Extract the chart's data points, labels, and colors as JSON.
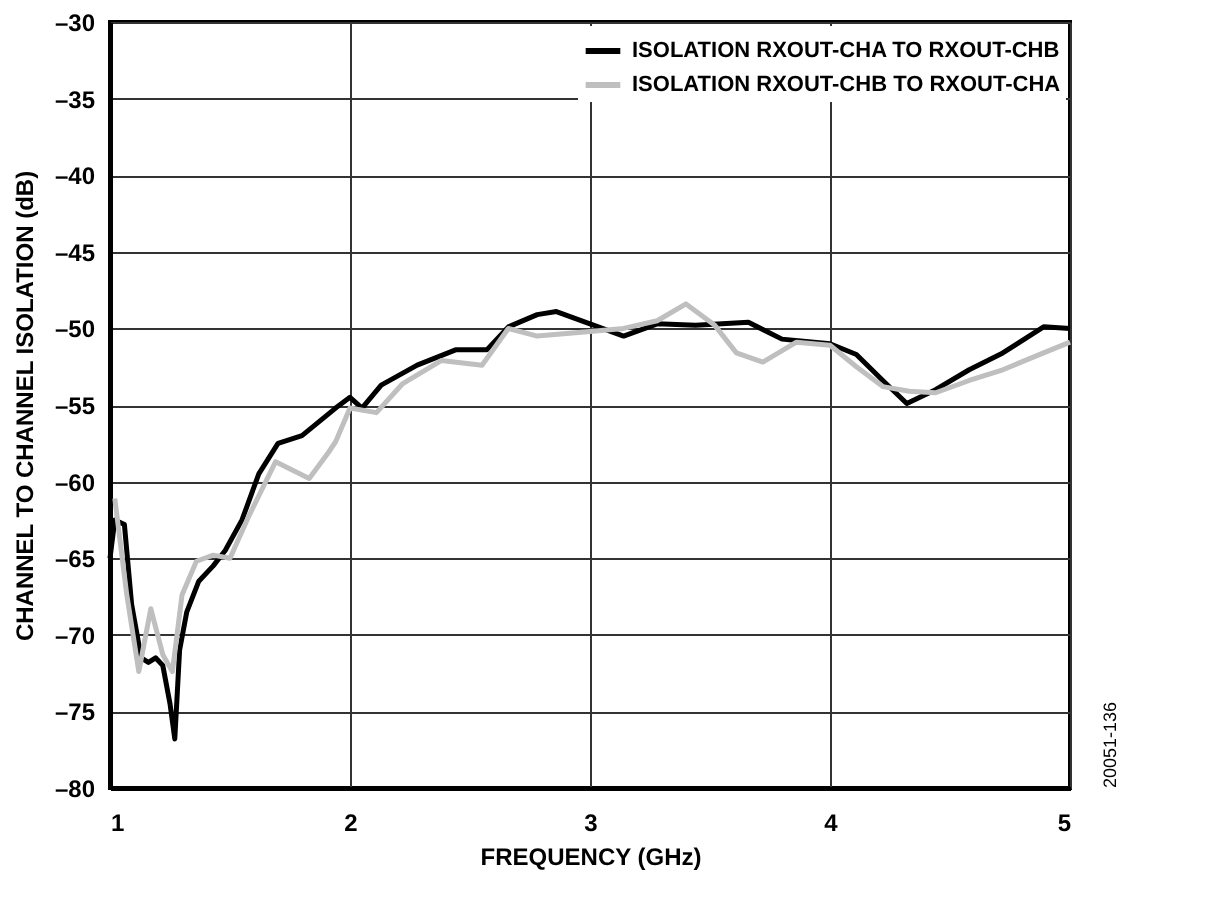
{
  "chart_data": {
    "type": "line",
    "xlabel": "FREQUENCY (GHz)",
    "ylabel": "CHANNEL TO CHANNEL ISOLATION (dB)",
    "xlim": [
      1,
      5
    ],
    "xticks": [
      1,
      2,
      3,
      4,
      5
    ],
    "ylim": [
      -80,
      -30
    ],
    "yticks": [
      {
        "value": -80,
        "label": "–80"
      },
      {
        "value": -75,
        "label": "–75"
      },
      {
        "value": -70,
        "label": "–70"
      },
      {
        "value": -65,
        "label": "–65"
      },
      {
        "value": -60,
        "label": "–60"
      },
      {
        "value": -55,
        "label": "–55"
      },
      {
        "value": -50,
        "label": "–50"
      },
      {
        "value": -45,
        "label": "–45"
      },
      {
        "value": -40,
        "label": "–40"
      },
      {
        "value": -35,
        "label": "–35"
      },
      {
        "value": -30,
        "label": "–30"
      }
    ],
    "grid": true,
    "legend": "top right",
    "marker": "none",
    "line_style": "solid",
    "annotations": [
      "20051-136"
    ],
    "series": [
      {
        "name": "ISOLATION RXOUT-CHA TO RXOUT-CHB",
        "color": "#000000",
        "x": [
          1.0,
          1.02,
          1.06,
          1.09,
          1.13,
          1.16,
          1.19,
          1.22,
          1.25,
          1.27,
          1.29,
          1.32,
          1.37,
          1.43,
          1.48,
          1.55,
          1.62,
          1.7,
          1.8,
          1.94,
          2.0,
          2.05,
          2.13,
          2.28,
          2.44,
          2.57,
          2.66,
          2.78,
          2.86,
          3.0,
          3.14,
          3.28,
          3.44,
          3.66,
          3.8,
          4.0,
          4.11,
          4.22,
          4.32,
          4.44,
          4.58,
          4.72,
          4.89,
          5.0
        ],
        "values": [
          -65,
          -62.5,
          -62.8,
          -68,
          -71.5,
          -71.8,
          -71.5,
          -72,
          -74.5,
          -76.8,
          -71,
          -68.5,
          -66.5,
          -65.5,
          -64.5,
          -62.5,
          -59.5,
          -57.5,
          -57,
          -55.2,
          -54.5,
          -55.2,
          -53.7,
          -52.4,
          -51.4,
          -51.4,
          -49.9,
          -49.1,
          -48.9,
          -49.7,
          -50.5,
          -49.7,
          -49.8,
          -49.6,
          -50.7,
          -51,
          -51.7,
          -53.4,
          -54.9,
          -54,
          -52.7,
          -51.6,
          -49.9,
          -50
        ]
      },
      {
        "name": "ISOLATION RXOUT-CHB TO RXOUT-CHA",
        "color": "#bfbfbf",
        "x": [
          1.02,
          1.07,
          1.12,
          1.17,
          1.22,
          1.26,
          1.3,
          1.36,
          1.43,
          1.5,
          1.58,
          1.69,
          1.83,
          1.91,
          1.94,
          2.0,
          2.11,
          2.22,
          2.38,
          2.55,
          2.66,
          2.78,
          3.0,
          3.14,
          3.28,
          3.4,
          3.52,
          3.61,
          3.72,
          3.86,
          4.0,
          4.11,
          4.22,
          4.33,
          4.44,
          4.58,
          4.72,
          4.89,
          5.0
        ],
        "values": [
          -61.1,
          -67.4,
          -72.4,
          -68.3,
          -71.3,
          -72.4,
          -67.4,
          -65.2,
          -64.8,
          -65,
          -62.2,
          -58.7,
          -59.8,
          -58.1,
          -57.4,
          -55.2,
          -55.5,
          -53.6,
          -52.1,
          -52.4,
          -50,
          -50.5,
          -50.2,
          -50,
          -49.5,
          -48.4,
          -49.8,
          -51.6,
          -52.2,
          -50.9,
          -51.1,
          -52.5,
          -53.8,
          -54.1,
          -54.2,
          -53.4,
          -52.7,
          -51.6,
          -50.9
        ]
      }
    ]
  }
}
